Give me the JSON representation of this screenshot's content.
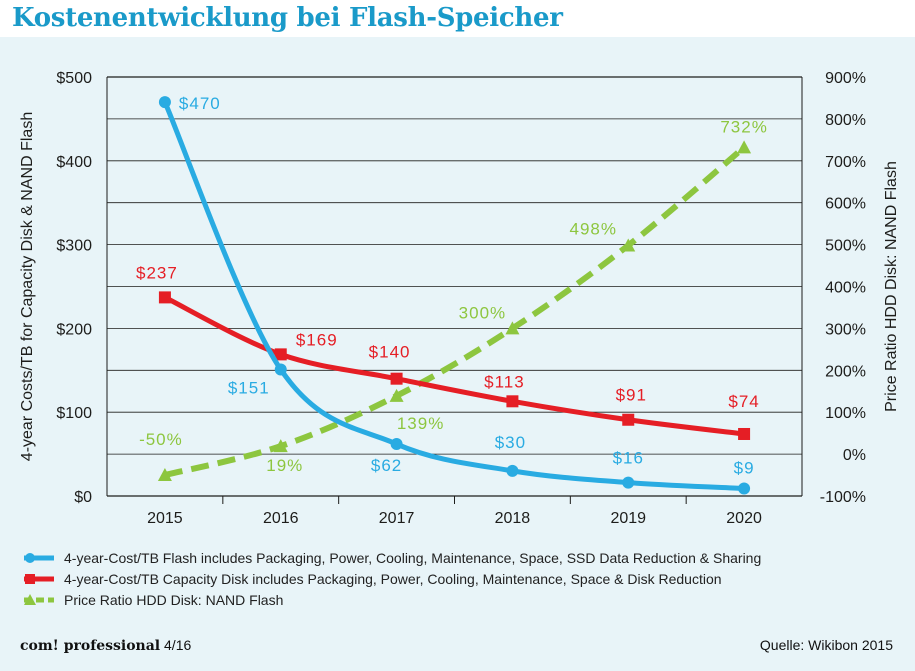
{
  "title": "Kostenentwicklung bei Flash-Speicher",
  "colors": {
    "title": "#1a9ac9",
    "flash": "#29abe2",
    "disk": "#e51e25",
    "ratio": "#8dc63f",
    "panel": "#e8f4f8"
  },
  "chart_data": {
    "type": "line",
    "categories": [
      "2015",
      "2016",
      "2017",
      "2018",
      "2019",
      "2020"
    ],
    "ylabel": "4-year Costs/TB for Capacity Disk & NAND Flash",
    "ylabel_right": "Price Ratio HDD Disk: NAND Flash",
    "y_ticks": [
      "$0",
      "$100",
      "$200",
      "$300",
      "$400",
      "$500"
    ],
    "y_right_ticks": [
      "-100%",
      "0%",
      "100%",
      "200%",
      "300%",
      "400%",
      "500%",
      "600%",
      "700%",
      "800%",
      "900%"
    ],
    "ylim": [
      0,
      500
    ],
    "ylim_right": [
      -100,
      900
    ],
    "grid": true,
    "series": [
      {
        "name": "4-year-Cost/TB Flash includes Packaging, Power, Cooling, Maintenance, Space, SSD Data Reduction & Sharing",
        "axis": "left",
        "marker": "circle",
        "style": "solid",
        "values": [
          470,
          151,
          62,
          30,
          16,
          9
        ],
        "labels": [
          "$470",
          "$151",
          "$62",
          "$30",
          "$16",
          "$9"
        ]
      },
      {
        "name": "4-year-Cost/TB Capacity Disk includes Packaging, Power, Cooling, Maintenance, Space & Disk Reduction",
        "axis": "left",
        "marker": "square",
        "style": "solid",
        "values": [
          237,
          169,
          140,
          113,
          91,
          74
        ],
        "labels": [
          "$237",
          "$169",
          "$140",
          "$113",
          "$91",
          "$74"
        ]
      },
      {
        "name": "Price Ratio HDD Disk: NAND Flash",
        "axis": "right",
        "marker": "triangle",
        "style": "dashed",
        "values": [
          -50,
          19,
          139,
          300,
          498,
          732
        ],
        "labels": [
          "-50%",
          "19%",
          "139%",
          "300%",
          "498%",
          "732%"
        ]
      }
    ]
  },
  "footer": {
    "publication": "com! professional",
    "issue": "4/16",
    "source": "Quelle: Wikibon 2015"
  }
}
